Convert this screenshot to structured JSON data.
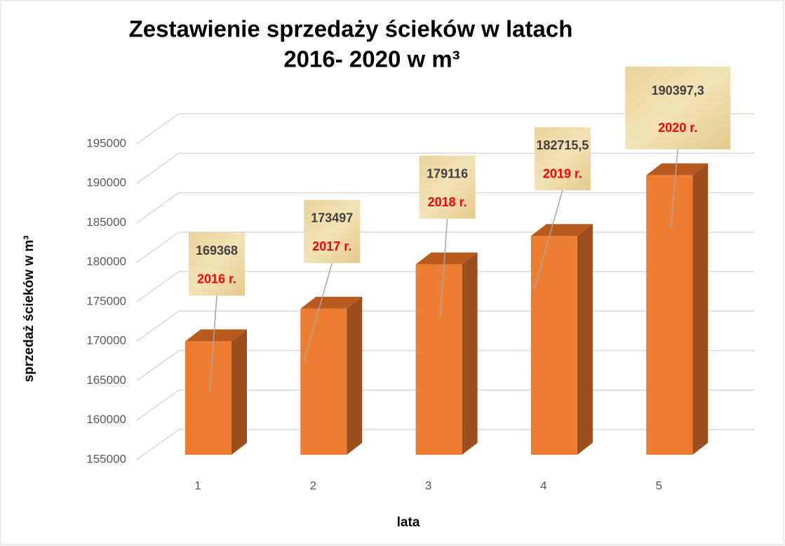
{
  "chart_data": {
    "type": "bar3d",
    "title": [
      "Zestawienie sprzedaży ścieków w latach",
      "2016- 2020 w m³"
    ],
    "y_label": "sprzedaż ścieków w m³",
    "x_label": "lata",
    "categories": [
      "1",
      "2",
      "3",
      "4",
      "5"
    ],
    "values": [
      169368,
      173497,
      179116,
      182715.5,
      190397.3
    ],
    "value_labels": [
      "169368",
      "173497",
      "179116",
      "182715,5",
      "190397,3"
    ],
    "annotations": [
      "2016 r.",
      "2017 r.",
      "2018 r.",
      "2019 r.",
      "2020 r."
    ],
    "color": "#ed7d31",
    "ylim": [
      155000,
      195000
    ],
    "yticks": [
      155000,
      160000,
      165000,
      170000,
      175000,
      180000,
      185000,
      190000,
      195000
    ],
    "grid": true
  }
}
